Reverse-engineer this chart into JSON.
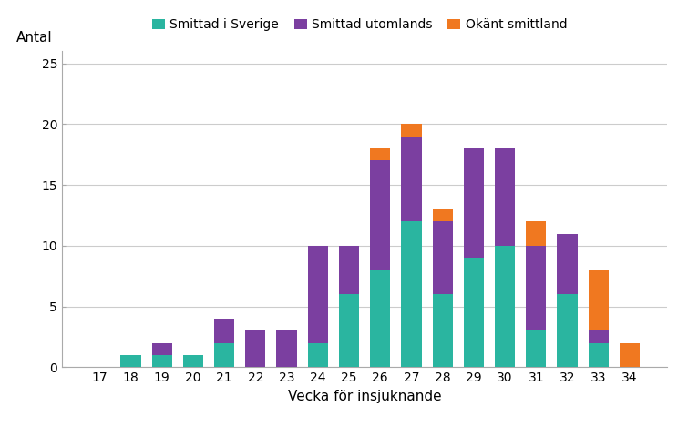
{
  "weeks": [
    17,
    18,
    19,
    20,
    21,
    22,
    23,
    24,
    25,
    26,
    27,
    28,
    29,
    30,
    31,
    32,
    33,
    34
  ],
  "sverige": [
    0,
    1,
    1,
    1,
    2,
    0,
    0,
    2,
    6,
    8,
    12,
    6,
    9,
    10,
    3,
    6,
    2,
    0
  ],
  "utomlands": [
    0,
    0,
    1,
    0,
    2,
    3,
    3,
    8,
    4,
    9,
    7,
    6,
    9,
    8,
    7,
    5,
    1,
    0
  ],
  "okant": [
    0,
    0,
    0,
    0,
    0,
    0,
    0,
    0,
    0,
    1,
    1,
    1,
    0,
    0,
    2,
    0,
    5,
    2
  ],
  "color_sverige": "#2ab5a0",
  "color_utomlands": "#7b3fa0",
  "color_okant": "#f07820",
  "xlabel": "Vecka för insjuknande",
  "ylabel": "Antal",
  "ylim": [
    0,
    26
  ],
  "yticks": [
    0,
    5,
    10,
    15,
    20,
    25
  ],
  "legend_sverige": "Smittad i Sverige",
  "legend_utomlands": "Smittad utomlands",
  "legend_okant": "Okänt smittland",
  "background_color": "#ffffff",
  "bar_width": 0.65
}
